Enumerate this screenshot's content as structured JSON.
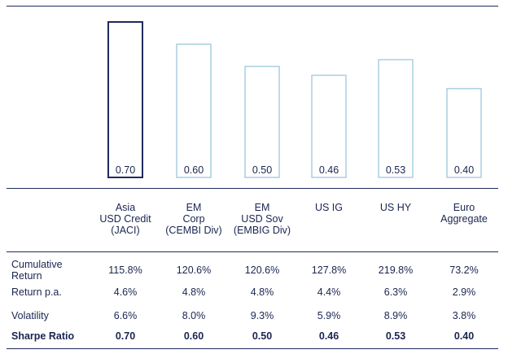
{
  "chart_data": {
    "type": "bar",
    "title": "",
    "xlabel": "",
    "ylabel": "",
    "ylim": [
      0,
      0.75
    ],
    "categories": [
      "Asia\nUSD Credit\n(JACI)",
      "EM\nCorp\n(CEMBI Div)",
      "EM\nUSD Sov\n(EMBIG Div)",
      "US IG",
      "US HY",
      "Euro\nAggregate"
    ],
    "values": [
      0.7,
      0.6,
      0.5,
      0.46,
      0.53,
      0.4
    ],
    "value_labels": [
      "0.70",
      "0.60",
      "0.50",
      "0.46",
      "0.53",
      "0.40"
    ],
    "highlight_index": 0,
    "colors": {
      "highlight": "#1f2a5c",
      "bar": "#a9cfe0",
      "text": "#1a2550",
      "rule": "#1f2a5c"
    }
  },
  "table": {
    "rows": [
      {
        "label": "Cumulative\nReturn",
        "values": [
          "115.8%",
          "120.6%",
          "120.6%",
          "127.8%",
          "219.8%",
          "73.2%"
        ],
        "bold": false
      },
      {
        "label": "Return p.a.",
        "values": [
          "4.6%",
          "4.8%",
          "4.8%",
          "4.4%",
          "6.3%",
          "2.9%"
        ],
        "bold": false
      },
      {
        "label": "Volatility",
        "values": [
          "6.6%",
          "8.0%",
          "9.3%",
          "5.9%",
          "8.9%",
          "3.8%"
        ],
        "bold": false
      },
      {
        "label": "Sharpe Ratio",
        "values": [
          "0.70",
          "0.60",
          "0.50",
          "0.46",
          "0.53",
          "0.40"
        ],
        "bold": true
      }
    ]
  }
}
